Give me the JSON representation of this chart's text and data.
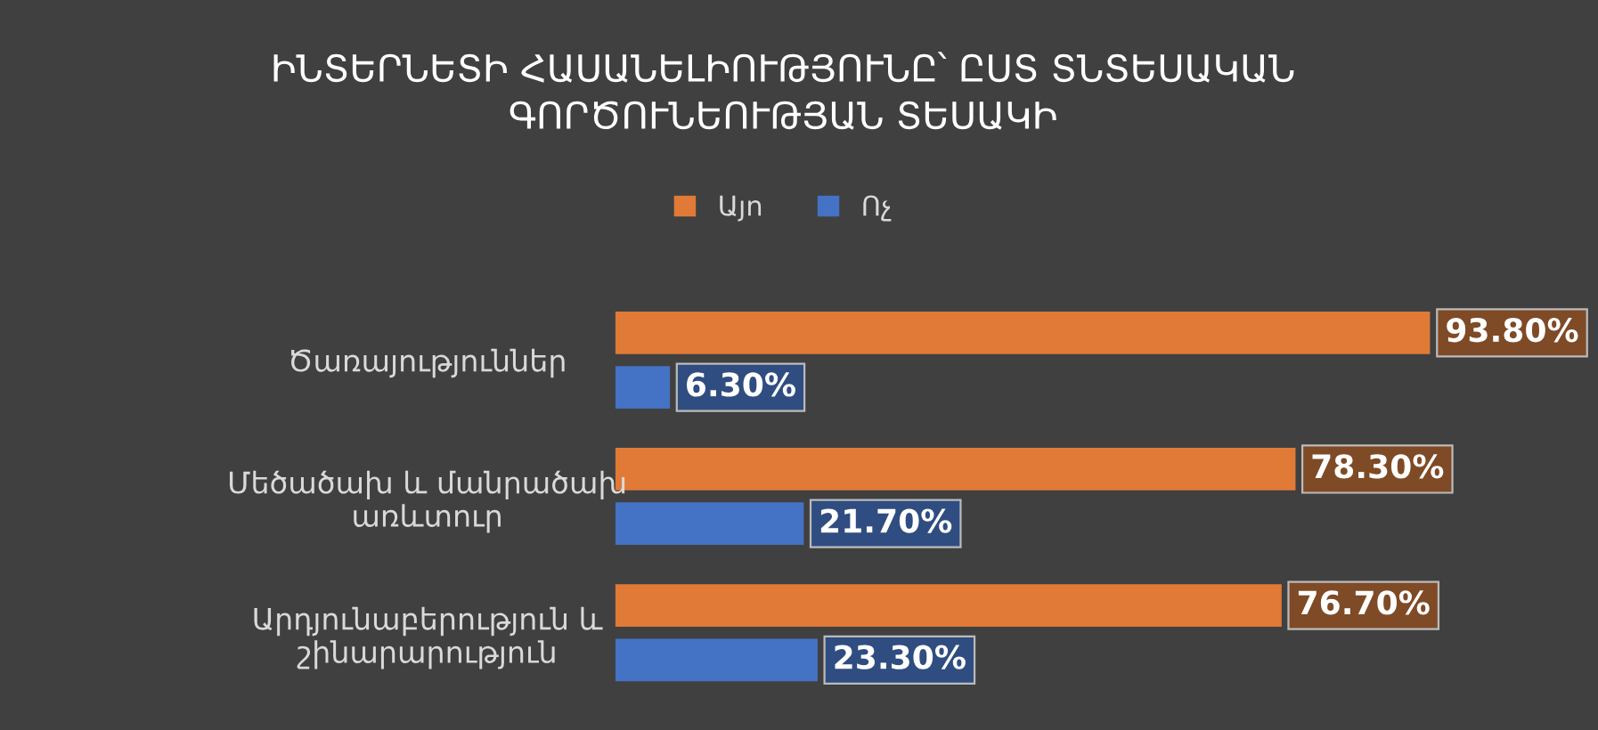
{
  "chart_data": {
    "type": "bar",
    "orientation": "horizontal",
    "title": "ԻՆՏԵՐՆԵՏԻ ՀԱՍԱՆԵԼԻՈՒԹՅՈՒՆԸ՝ ԸՍՏ ՏՆՏԵՍԱԿԱՆ\nԳՈՐԾՈՒՆԵՈՒԹՅԱՆ ՏԵՍԱԿԻ",
    "categories": [
      "Ծառայություններ",
      "Մեծածախ և մանրածախ\nառևտուր",
      "Արդյունաբերություն և\nշինարարություն"
    ],
    "series": [
      {
        "name": "Այո",
        "color": "#e07a36",
        "values": [
          93.8,
          78.3,
          76.7
        ],
        "value_labels": [
          "93.80%",
          "78.30%",
          "76.70%"
        ]
      },
      {
        "name": "Ոչ",
        "color": "#4472c4",
        "values": [
          6.3,
          21.7,
          23.3
        ],
        "value_labels": [
          "6.30%",
          "21.70%",
          "23.30%"
        ]
      }
    ],
    "legend": "top",
    "grid": false
  }
}
